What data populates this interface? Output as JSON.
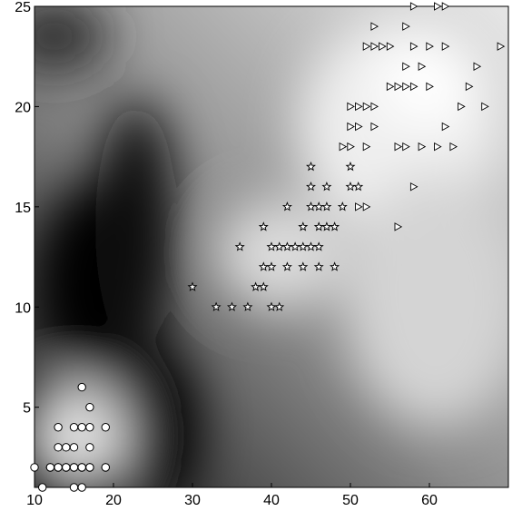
{
  "chart_data": {
    "type": "scatter",
    "title": "",
    "xlabel": "",
    "ylabel": "",
    "xlim": [
      10,
      70
    ],
    "ylim": [
      1,
      25
    ],
    "xticks": [
      10,
      20,
      30,
      40,
      50,
      60
    ],
    "yticks": [
      5,
      10,
      15,
      20,
      25
    ],
    "grid": false,
    "legend": "none",
    "background": "grayscale density map: dark band around x 15-28 (and dark at x 15-20, y 8-13), light near the bottom-left cluster and the star cluster, brightest near the triangle cluster",
    "series": [
      {
        "marker": "circle",
        "color": "#ffffff",
        "x": [
          16,
          17,
          13,
          15,
          16,
          17,
          19,
          13,
          14,
          15,
          17,
          12,
          13,
          14,
          15,
          16,
          17,
          19,
          10,
          12,
          13,
          14,
          15,
          16,
          17,
          19,
          12,
          13,
          14,
          15,
          16,
          17,
          11,
          15,
          16
        ],
        "y": [
          6,
          5,
          4,
          4,
          4,
          4,
          4,
          3,
          3,
          3,
          3,
          2,
          2,
          2,
          2,
          2,
          2,
          2,
          2,
          2,
          2,
          2,
          2,
          2,
          2,
          2,
          2,
          2,
          2,
          2,
          2,
          2,
          1,
          1,
          1
        ]
      },
      {
        "marker": "star",
        "color": "#ffffff",
        "x": [
          50,
          45,
          50,
          45,
          47,
          51,
          42,
          45,
          46,
          47,
          49,
          39,
          44,
          46,
          47,
          48,
          36,
          40,
          41,
          42,
          43,
          44,
          45,
          46,
          39,
          40,
          42,
          44,
          46,
          48,
          38,
          39,
          30,
          33,
          35,
          37,
          40,
          41
        ],
        "y": [
          17,
          17,
          16,
          16,
          16,
          16,
          15,
          15,
          15,
          15,
          15,
          14,
          14,
          14,
          14,
          14,
          13,
          13,
          13,
          13,
          13,
          13,
          13,
          13,
          12,
          12,
          12,
          12,
          12,
          12,
          11,
          11,
          11,
          10,
          10,
          10,
          10,
          10
        ]
      },
      {
        "marker": "triangle-right",
        "color": "#ffffff",
        "x": [
          58,
          61,
          62,
          53,
          57,
          52,
          53,
          54,
          55,
          58,
          60,
          62,
          69,
          57,
          59,
          66,
          55,
          56,
          57,
          58,
          60,
          65,
          50,
          51,
          52,
          53,
          64,
          67,
          50,
          51,
          53,
          62,
          49,
          50,
          52,
          56,
          57,
          59,
          61,
          63,
          58,
          51,
          52,
          56
        ],
        "y": [
          25,
          25,
          25,
          24,
          24,
          23,
          23,
          23,
          23,
          23,
          23,
          23,
          23,
          22,
          22,
          22,
          21,
          21,
          21,
          21,
          21,
          21,
          20,
          20,
          20,
          20,
          20,
          20,
          19,
          19,
          19,
          19,
          18,
          18,
          18,
          18,
          18,
          18,
          18,
          18,
          16,
          15,
          15,
          14
        ]
      }
    ]
  }
}
